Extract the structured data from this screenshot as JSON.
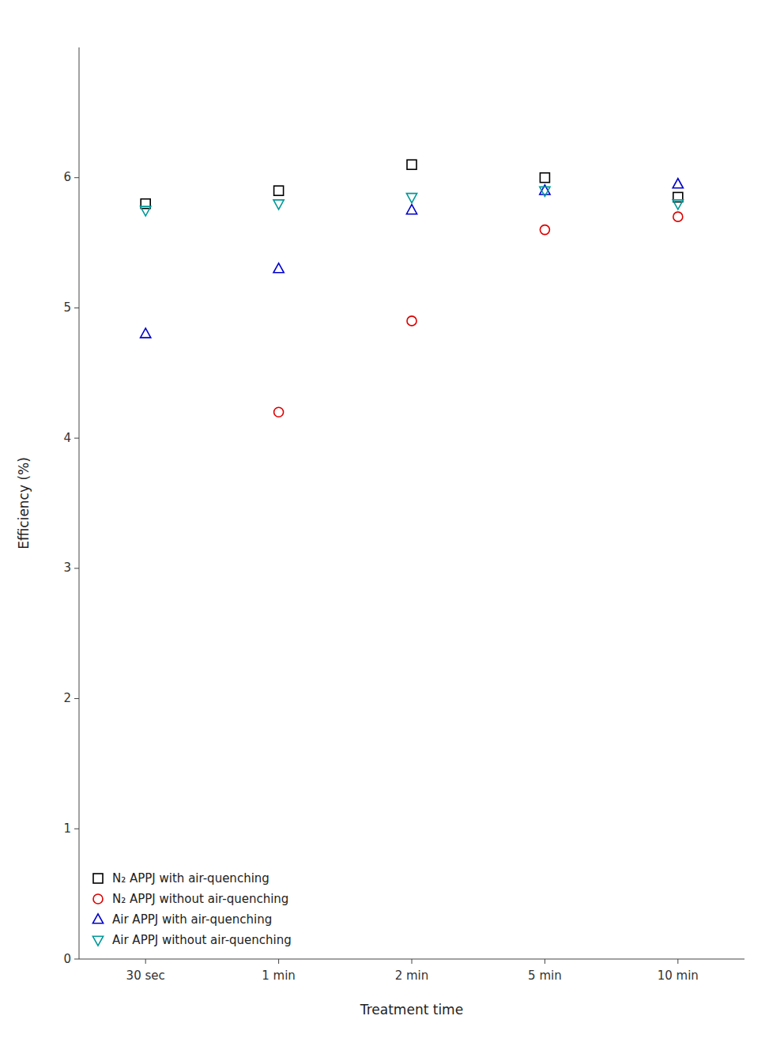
{
  "chart_data": {
    "type": "scatter",
    "xlabel": "Treatment time",
    "ylabel": "Efficiency (%)",
    "categories": [
      "30 sec",
      "1 min",
      "2 min",
      "5 min",
      "10 min"
    ],
    "ylim": [
      0,
      7
    ],
    "yticks": [
      0,
      1,
      2,
      3,
      4,
      5,
      6
    ],
    "legend": "lower left",
    "series": [
      {
        "name": "N₂ APPJ with air-quenching",
        "color": "#000000",
        "marker": "square",
        "values": [
          5.8,
          5.9,
          6.1,
          6.0,
          5.85
        ]
      },
      {
        "name": "N₂ APPJ without air-quenching",
        "color": "#dd0000",
        "marker": "circle",
        "values": [
          null,
          4.2,
          4.9,
          5.6,
          5.7
        ]
      },
      {
        "name": "Air APPJ with air-quenching",
        "color": "#0000cc",
        "marker": "triangle-up",
        "values": [
          4.8,
          5.3,
          5.75,
          5.9,
          5.95
        ]
      },
      {
        "name": "Air APPJ without air-quenching",
        "color": "#009999",
        "marker": "triangle-down",
        "values": [
          5.75,
          5.8,
          5.85,
          5.9,
          5.8
        ]
      }
    ]
  }
}
